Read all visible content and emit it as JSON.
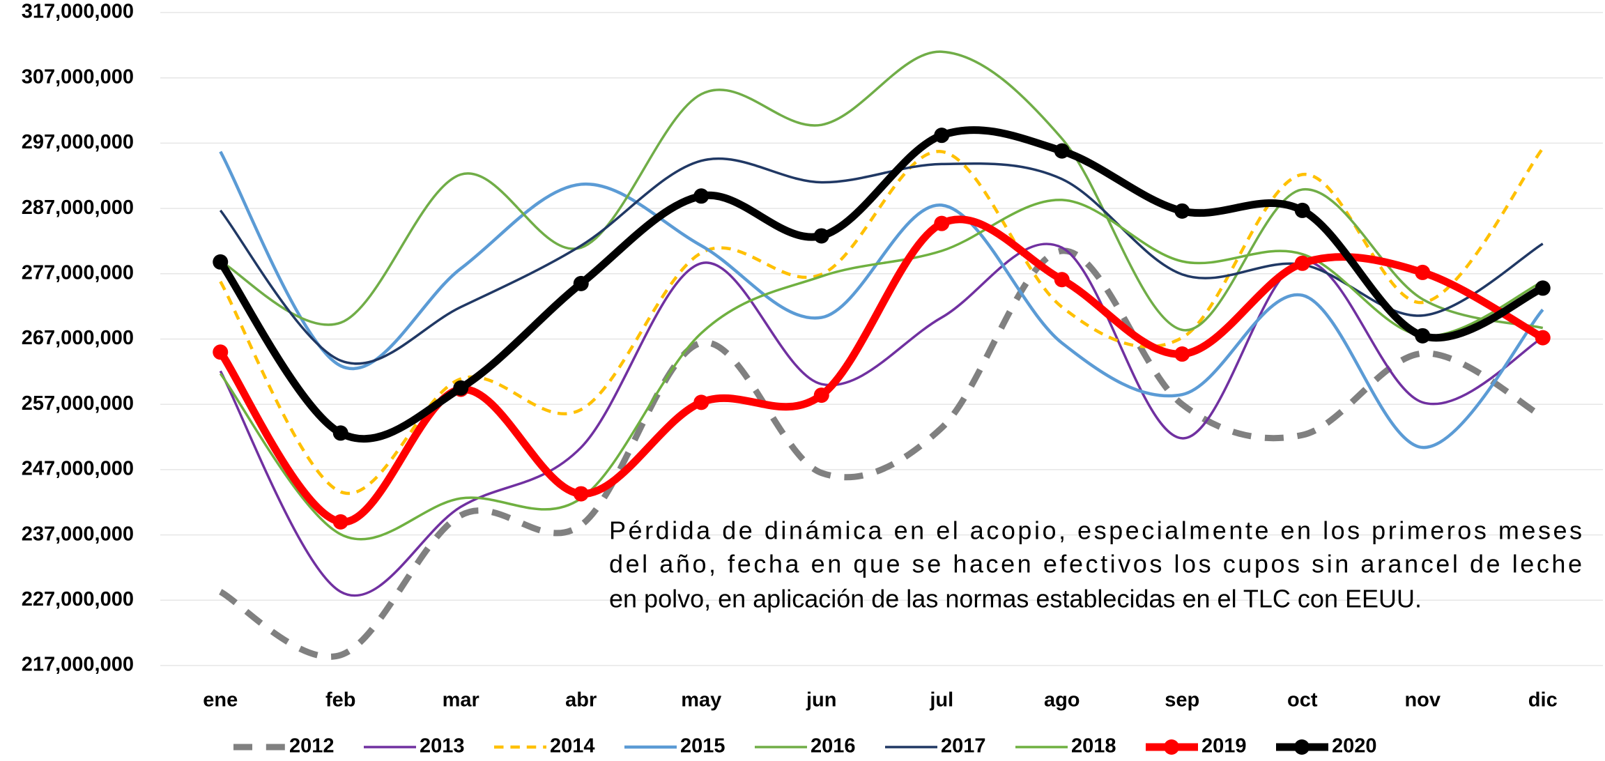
{
  "chart_data": {
    "type": "line",
    "categories": [
      "ene",
      "feb",
      "mar",
      "abr",
      "may",
      "jun",
      "jul",
      "ago",
      "sep",
      "oct",
      "nov",
      "dic"
    ],
    "series": [
      {
        "name": "2012",
        "color": "#808080",
        "dashed": true,
        "markers": false,
        "values": [
          228300000,
          218600000,
          240000000,
          238500000,
          266400000,
          246500000,
          253400000,
          280500000,
          257000000,
          252300000,
          264800000,
          255100000
        ]
      },
      {
        "name": "2013",
        "color": "#7030a0",
        "dashed": false,
        "markers": false,
        "values": [
          262100000,
          228300000,
          241300000,
          250400000,
          278600000,
          260100000,
          270300000,
          281000000,
          251800000,
          278900000,
          257300000,
          267200000
        ]
      },
      {
        "name": "2014",
        "color": "#ffc000",
        "dashed": true,
        "markers": false,
        "values": [
          275800000,
          243600000,
          260900000,
          256200000,
          280200000,
          276900000,
          295700000,
          271900000,
          267200000,
          292200000,
          272600000,
          296200000
        ]
      },
      {
        "name": "2015",
        "color": "#5b9bd5",
        "dashed": false,
        "markers": false,
        "values": [
          295700000,
          262900000,
          277800000,
          290700000,
          281300000,
          270300000,
          287500000,
          266400000,
          258500000,
          273700000,
          250400000,
          271500000
        ]
      },
      {
        "name": "2016",
        "color": "#70ad47",
        "dashed": false,
        "markers": false,
        "values": [
          278900000,
          269500000,
          292200000,
          281000000,
          304500000,
          299800000,
          311000000,
          297700000,
          268400000,
          289900000,
          273100000,
          268700000
        ]
      },
      {
        "name": "2017",
        "color": "#203864",
        "dashed": false,
        "markers": false,
        "values": [
          286700000,
          263700000,
          271900000,
          281300000,
          294300000,
          291000000,
          293800000,
          291500000,
          276900000,
          278400000,
          270600000,
          281600000
        ]
      },
      {
        "name": "2018",
        "color": "#6fb040",
        "dashed": false,
        "markers": false,
        "values": [
          261700000,
          237100000,
          242600000,
          242600000,
          267900000,
          276600000,
          280500000,
          288300000,
          278900000,
          280000000,
          267500000,
          275800000
        ]
      },
      {
        "name": "2019",
        "color": "#ff0000",
        "dashed": false,
        "markers": true,
        "values": [
          265000000,
          239000000,
          259300000,
          243300000,
          257300000,
          258400000,
          284700000,
          276100000,
          264700000,
          278600000,
          277200000,
          267200000
        ]
      },
      {
        "name": "2020",
        "color": "#000000",
        "dashed": false,
        "markers": true,
        "values": [
          278800000,
          252600000,
          259500000,
          275500000,
          288900000,
          282800000,
          298200000,
          295800000,
          286600000,
          286700000,
          267500000,
          274800000
        ]
      }
    ],
    "ylim": [
      217000000,
      317000000
    ],
    "yticks": [
      {
        "value": 217000000,
        "label": "217,000,000"
      },
      {
        "value": 227000000,
        "label": "227,000,000"
      },
      {
        "value": 237000000,
        "label": "237,000,000"
      },
      {
        "value": 247000000,
        "label": "247,000,000"
      },
      {
        "value": 257000000,
        "label": "257,000,000"
      },
      {
        "value": 267000000,
        "label": "267,000,000"
      },
      {
        "value": 277000000,
        "label": "277,000,000"
      },
      {
        "value": 287000000,
        "label": "287,000,000"
      },
      {
        "value": 297000000,
        "label": "297,000,000"
      },
      {
        "value": 307000000,
        "label": "307,000,000"
      },
      {
        "value": 317000000,
        "label": "317,000,000"
      }
    ],
    "grid": true,
    "legend": "bottom",
    "annotation": [
      "Pérdida de dinámica en el acopio, especialmente en los primeros meses",
      "del año, fecha en que se hacen efectivos los cupos sin arancel de leche",
      "en polvo, en aplicación de las normas establecidas en el TLC con EEUU."
    ]
  }
}
